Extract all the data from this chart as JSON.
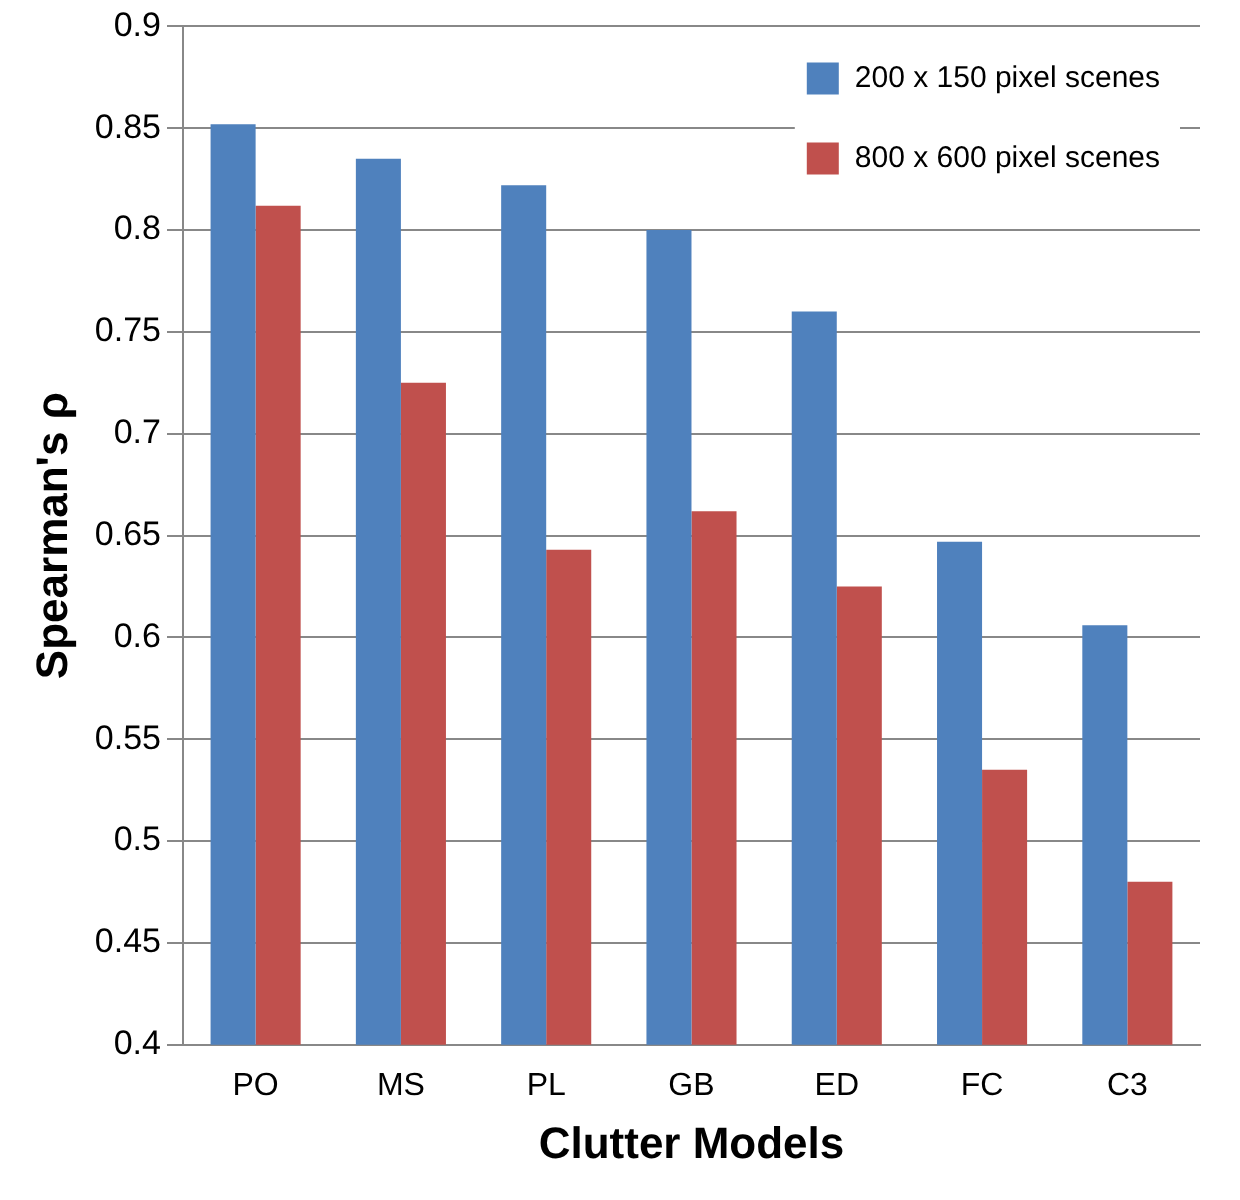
{
  "chart_data": {
    "type": "bar",
    "xlabel": "Clutter Models",
    "ylabel": "Spearman's ρ",
    "categories": [
      "PO",
      "MS",
      "PL",
      "GB",
      "ED",
      "FC",
      "C3"
    ],
    "series": [
      {
        "name": "200 x 150 pixel scenes",
        "color": "#4f81bd",
        "values": [
          0.852,
          0.835,
          0.822,
          0.8,
          0.76,
          0.647,
          0.606
        ]
      },
      {
        "name": "800 x 600 pixel scenes",
        "color": "#c0504d",
        "values": [
          0.812,
          0.725,
          0.643,
          0.662,
          0.625,
          0.535,
          0.48
        ]
      }
    ],
    "ylim": [
      0.4,
      0.9
    ],
    "yticks": [
      0.4,
      0.45,
      0.5,
      0.55,
      0.6,
      0.65,
      0.7,
      0.75,
      0.8,
      0.85,
      0.9
    ],
    "grid": "y",
    "legend": "top right"
  }
}
